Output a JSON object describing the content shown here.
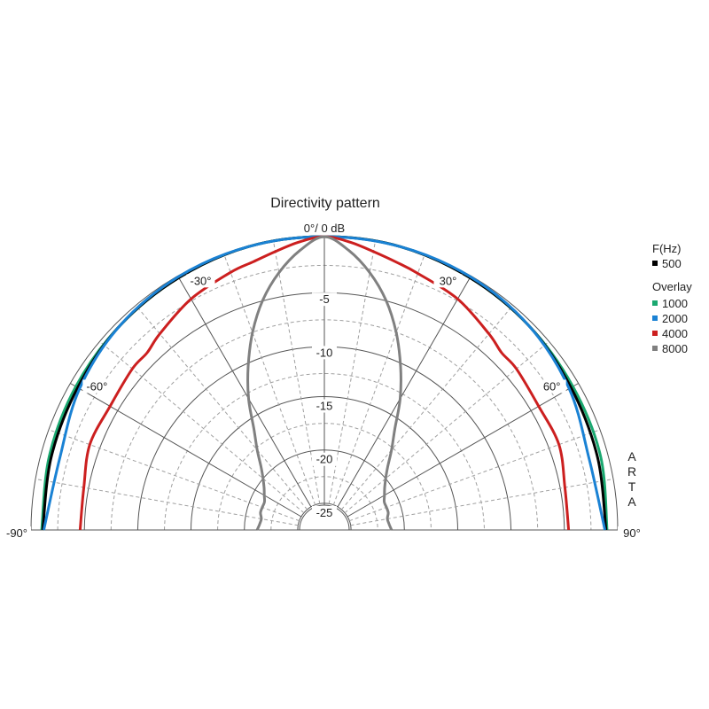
{
  "chart_data": {
    "type": "polar-half",
    "title": "Directivity pattern",
    "top_label": "0°/ 0 dB",
    "angle_labels": [
      {
        "angle": -90,
        "text": "-90°"
      },
      {
        "angle": -60,
        "text": "-60°"
      },
      {
        "angle": -30,
        "text": "-30°"
      },
      {
        "angle": 30,
        "text": "30°"
      },
      {
        "angle": 60,
        "text": "60°"
      },
      {
        "angle": 90,
        "text": "90°"
      }
    ],
    "db_ticks": [
      {
        "db": -5,
        "text": "-5"
      },
      {
        "db": -10,
        "text": "-10"
      },
      {
        "db": -15,
        "text": "-15"
      },
      {
        "db": -20,
        "text": "-20"
      },
      {
        "db": -25,
        "text": "-25"
      }
    ],
    "db_range": [
      -27.5,
      0
    ],
    "grid": true,
    "watermark": "ARTA",
    "legend": {
      "placement": "right",
      "header": "F(Hz)",
      "overlay_header": "Overlay",
      "main": {
        "name": "500",
        "color": "#000000"
      },
      "overlays": [
        {
          "name": "1000",
          "color": "#1aa870"
        },
        {
          "name": "2000",
          "color": "#1a82d4"
        },
        {
          "name": "4000",
          "color": "#cc1f1f"
        },
        {
          "name": "8000",
          "color": "#808080"
        }
      ]
    },
    "series": [
      {
        "name": "500",
        "color": "#000000",
        "angles": [
          -90,
          -75,
          -60,
          -45,
          -30,
          -15,
          0,
          15,
          30,
          45,
          60,
          75,
          90
        ],
        "values": [
          -1.1,
          -1.0,
          -0.8,
          -0.4,
          -0.2,
          0,
          0,
          0,
          -0.2,
          -0.4,
          -0.8,
          -1.0,
          -1.1
        ]
      },
      {
        "name": "1000",
        "color": "#1aa870",
        "angles": [
          -90,
          -75,
          -60,
          -45,
          -30,
          -15,
          0,
          15,
          30,
          45,
          60,
          75,
          90
        ],
        "values": [
          -1.0,
          -0.8,
          -0.6,
          -0.4,
          -0.2,
          0,
          0,
          0,
          -0.2,
          -0.4,
          -0.6,
          -0.7,
          -1.0
        ]
      },
      {
        "name": "2000",
        "color": "#1a82d4",
        "angles": [
          -90,
          -75,
          -60,
          -45,
          -30,
          -15,
          0,
          15,
          30,
          45,
          60,
          75,
          90
        ],
        "values": [
          -1.2,
          -1.8,
          -1.0,
          -0.4,
          -0.1,
          0,
          0,
          0,
          -0.1,
          -0.4,
          -1.0,
          -1.8,
          -1.2
        ]
      },
      {
        "name": "4000",
        "color": "#cc1f1f",
        "angles": [
          -90,
          -80,
          -70,
          -60,
          -50,
          -45,
          -40,
          -30,
          -20,
          -15,
          -10,
          -5,
          0,
          5,
          10,
          15,
          20,
          30,
          40,
          45,
          50,
          60,
          70,
          80,
          90
        ],
        "values": [
          -4.6,
          -4.6,
          -4.1,
          -4.3,
          -4.0,
          -4.0,
          -3.5,
          -2.5,
          -1.8,
          -1.5,
          -1.0,
          -0.4,
          0,
          -0.4,
          -1.0,
          -1.5,
          -1.9,
          -2.5,
          -3.5,
          -4.0,
          -4.0,
          -4.3,
          -4.1,
          -4.6,
          -4.6
        ]
      },
      {
        "name": "8000",
        "color": "#808080",
        "angles": [
          -90,
          -85,
          -80,
          -75,
          -70,
          -65,
          -60,
          -55,
          -50,
          -45,
          -40,
          -35,
          -30,
          -25,
          -20,
          -15,
          -10,
          -5,
          0,
          5,
          10,
          15,
          20,
          25,
          30,
          35,
          40,
          45,
          50,
          55,
          60,
          65,
          70,
          75,
          80,
          85,
          90
        ],
        "values": [
          -21.2,
          -21.4,
          -21.5,
          -21.3,
          -21.3,
          -21.3,
          -21.0,
          -20.6,
          -20.0,
          -19.1,
          -17.7,
          -16.0,
          -13.3,
          -10.6,
          -7.8,
          -5.2,
          -3.0,
          -1.2,
          0,
          -1.2,
          -3.0,
          -5.2,
          -7.8,
          -10.6,
          -13.3,
          -16.0,
          -17.7,
          -19.1,
          -20.0,
          -20.6,
          -21.0,
          -21.3,
          -21.3,
          -21.3,
          -21.5,
          -21.4,
          -21.2
        ]
      }
    ]
  }
}
